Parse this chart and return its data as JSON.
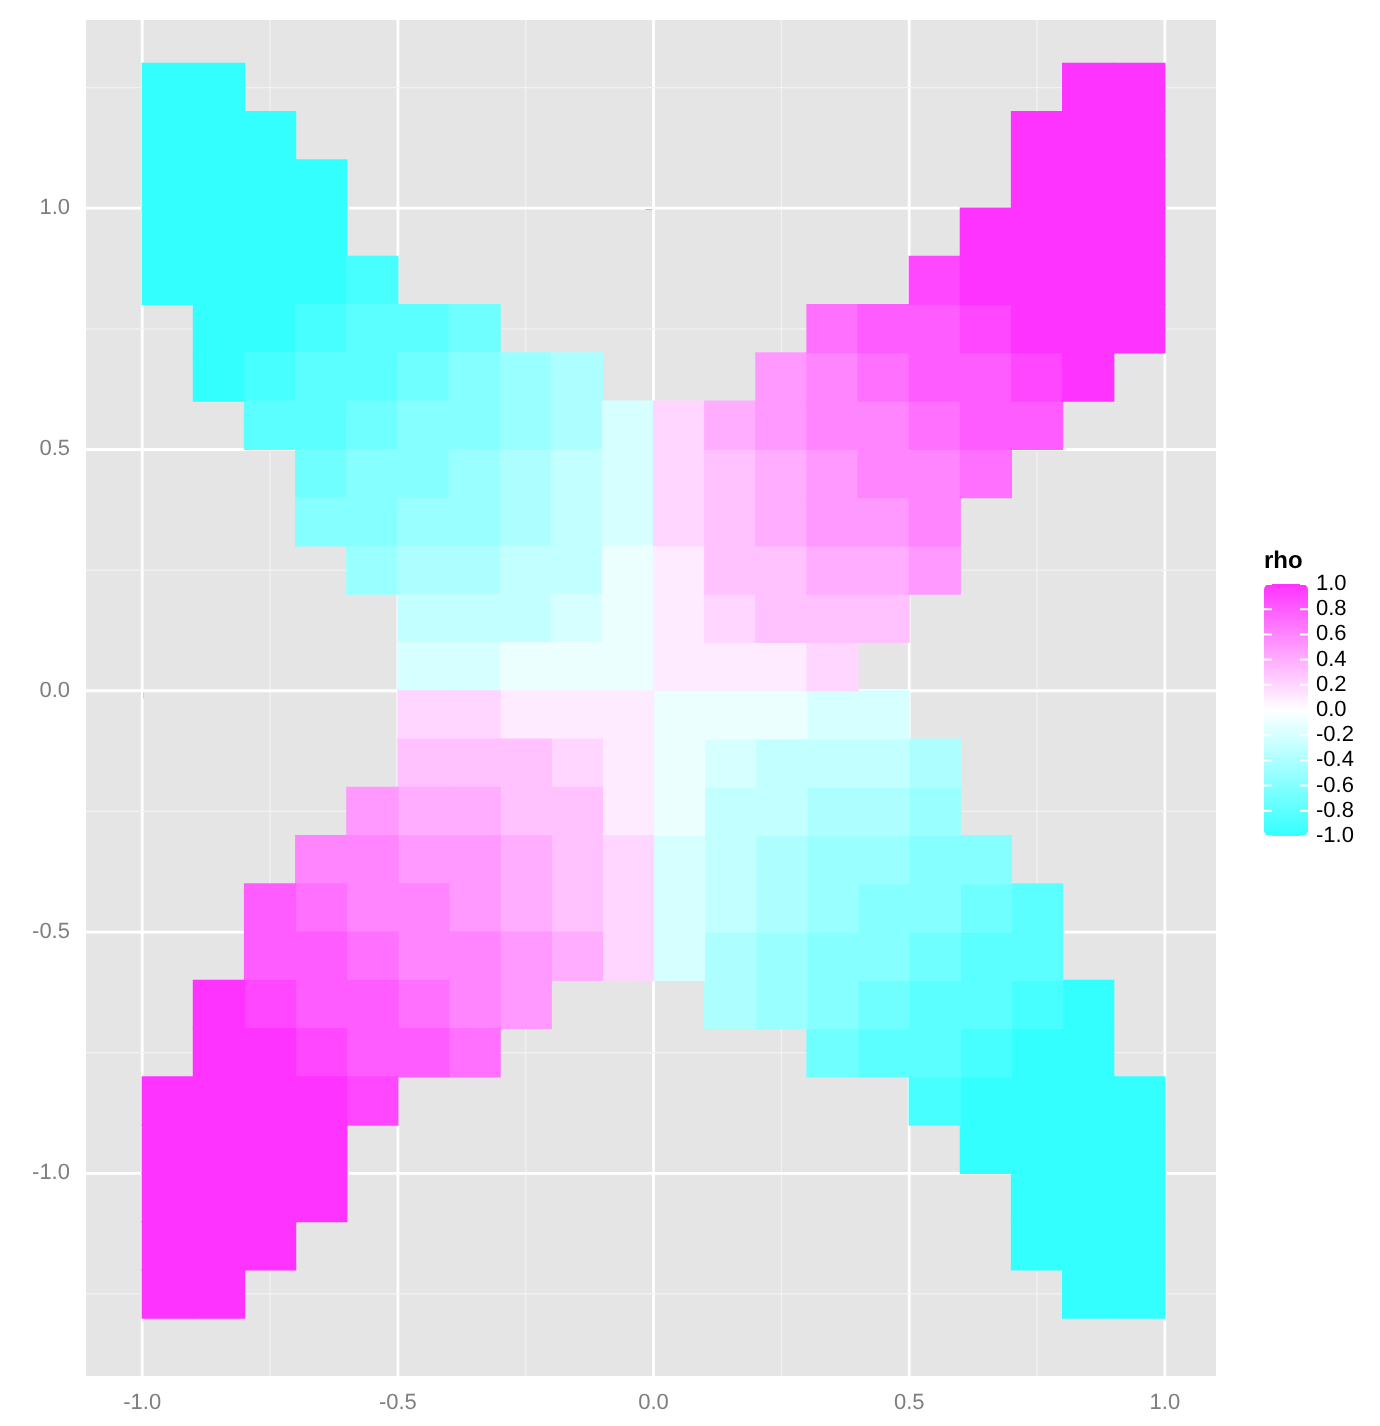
{
  "chart_data": {
    "type": "scatter",
    "marker": "square",
    "grid": true,
    "clabel": "rho",
    "clim": [
      -1,
      1
    ],
    "cticks": [
      {
        "value": 1,
        "label": "1.0"
      },
      0.8,
      0.6,
      0.4,
      0.2,
      {
        "value": 0,
        "label": "0.0"
      },
      -0.2,
      -0.4,
      -0.6,
      -0.8,
      {
        "value": -1,
        "label": "-1.0"
      }
    ],
    "xlim": [
      -1.11,
      1.1
    ],
    "ylim": [
      -1.42,
      1.39
    ],
    "xticks": [
      {
        "value": -1,
        "label": "-1.0"
      },
      -0.5,
      {
        "value": 0,
        "label": "0.0"
      },
      0.5,
      {
        "value": 1,
        "label": "1.0"
      }
    ],
    "yticks": [
      {
        "value": -1,
        "label": "-1.0"
      },
      -0.5,
      {
        "value": 0,
        "label": "0.0"
      },
      0.5,
      {
        "value": 1,
        "label": "1.0"
      }
    ],
    "series": [
      {
        "x": [
          -0.95,
          -0.85,
          -0.95,
          -0.85,
          -0.75,
          -0.95,
          -0.85,
          -0.75,
          -0.65,
          -0.95,
          -0.85,
          -0.75,
          -0.65,
          -0.95,
          -0.85,
          -0.75,
          -0.65,
          -0.85,
          -0.75,
          -0.85,
          0.85,
          0.75,
          0.85,
          0.65,
          0.75,
          0.85,
          0.95,
          0.65,
          0.75,
          0.85,
          0.95,
          0.75,
          0.85,
          0.95,
          0.75,
          0.85,
          0.95,
          0.85,
          0.95
        ],
        "values": [
          1.25,
          1.25,
          1.15,
          1.15,
          1.15,
          1.05,
          1.05,
          1.05,
          1.05,
          0.95,
          0.95,
          0.95,
          0.95,
          0.85,
          0.85,
          0.85,
          0.85,
          0.75,
          0.75,
          0.65,
          -0.65,
          -0.75,
          -0.75,
          -0.85,
          -0.85,
          -0.85,
          -0.85,
          -0.95,
          -0.95,
          -0.95,
          -0.95,
          -1.05,
          -1.05,
          -1.05,
          -1.15,
          -1.15,
          -1.15,
          -1.25,
          -1.25
        ],
        "cvalues": [
          -1,
          -1,
          -1,
          -1,
          -1,
          -1,
          -1,
          -1,
          -1,
          -1,
          -1,
          -1,
          -1,
          -1,
          -1,
          -1,
          -1,
          -1,
          -1,
          -1,
          -1,
          -1,
          -1,
          -1,
          -1,
          -1,
          -1,
          -1,
          -1,
          -1,
          -1,
          -1,
          -1,
          -1,
          -1,
          -1,
          -1,
          -1,
          -1
        ]
      },
      {
        "x": [
          -0.55,
          -0.65,
          -0.75,
          0.75,
          0.65,
          0.55
        ],
        "values": [
          0.85,
          0.75,
          0.65,
          -0.65,
          -0.75,
          -0.85
        ],
        "cvalues": [
          -0.9,
          -0.9,
          -0.9,
          -0.9,
          -0.9,
          -0.9
        ]
      },
      {
        "x": [
          -0.55,
          -0.45,
          -0.65,
          -0.55,
          -0.75,
          -0.65,
          0.75,
          0.65,
          0.75,
          0.55,
          0.65,
          0.45,
          0.55
        ],
        "values": [
          0.75,
          0.75,
          0.65,
          0.65,
          0.55,
          0.55,
          -0.45,
          -0.55,
          -0.55,
          -0.65,
          -0.65,
          -0.75,
          -0.75
        ],
        "cvalues": [
          -0.8,
          -0.8,
          -0.8,
          -0.8,
          -0.8,
          -0.8,
          -0.8,
          -0.8,
          -0.8,
          -0.8,
          -0.8,
          -0.8,
          -0.8
        ]
      },
      {
        "x": [
          -0.35,
          -0.45,
          -0.55,
          -0.65,
          0.65,
          0.55,
          0.45,
          0.35
        ],
        "values": [
          0.75,
          0.65,
          0.55,
          0.45,
          -0.45,
          -0.55,
          -0.65,
          -0.75
        ],
        "cvalues": [
          -0.7,
          -0.7,
          -0.7,
          -0.7,
          -0.7,
          -0.7,
          -0.7,
          -0.7
        ]
      },
      {
        "x": [
          -0.35,
          -0.45,
          -0.35,
          -0.55,
          -0.45,
          -0.65,
          -0.55,
          0.55,
          0.65,
          0.45,
          0.55,
          0.35,
          0.45,
          0.35
        ],
        "values": [
          0.65,
          0.55,
          0.55,
          0.45,
          0.45,
          0.35,
          0.35,
          -0.35,
          -0.35,
          -0.45,
          -0.45,
          -0.55,
          -0.55,
          -0.65
        ],
        "cvalues": [
          -0.6,
          -0.6,
          -0.6,
          -0.6,
          -0.6,
          -0.6,
          -0.6,
          -0.6,
          -0.6,
          -0.6,
          -0.6,
          -0.6,
          -0.6,
          -0.6
        ]
      },
      {
        "x": [
          -0.25,
          -0.25,
          -0.35,
          -0.45,
          -0.35,
          -0.55,
          0.55,
          0.35,
          0.45,
          0.35,
          0.25,
          0.25
        ],
        "values": [
          0.65,
          0.55,
          0.45,
          0.35,
          0.35,
          0.25,
          -0.25,
          -0.35,
          -0.35,
          -0.45,
          -0.55,
          -0.65
        ],
        "cvalues": [
          -0.5,
          -0.5,
          -0.5,
          -0.5,
          -0.5,
          -0.5,
          -0.5,
          -0.5,
          -0.5,
          -0.5,
          -0.5,
          -0.5
        ]
      },
      {
        "x": [
          -0.15,
          -0.15,
          -0.25,
          -0.25,
          -0.45,
          -0.35,
          0.55,
          0.35,
          0.45,
          0.25,
          0.25,
          0.15,
          0.15
        ],
        "values": [
          0.65,
          0.55,
          0.45,
          0.35,
          0.25,
          0.25,
          -0.15,
          -0.25,
          -0.25,
          -0.35,
          -0.45,
          -0.55,
          -0.65
        ],
        "cvalues": [
          -0.4,
          -0.4,
          -0.4,
          -0.4,
          -0.4,
          -0.4,
          -0.4,
          -0.4,
          -0.4,
          -0.4,
          -0.4,
          -0.4,
          -0.4
        ]
      },
      {
        "x": [
          -0.15,
          -0.15,
          -0.25,
          -0.15,
          -0.45,
          -0.35,
          -0.25,
          0.25,
          0.35,
          0.45,
          0.15,
          0.25,
          0.15,
          0.15
        ],
        "values": [
          0.45,
          0.35,
          0.25,
          0.25,
          0.15,
          0.15,
          0.15,
          -0.15,
          -0.15,
          -0.15,
          -0.25,
          -0.25,
          -0.35,
          -0.45
        ],
        "cvalues": [
          -0.3,
          -0.3,
          -0.3,
          -0.3,
          -0.3,
          -0.3,
          -0.3,
          -0.3,
          -0.3,
          -0.3,
          -0.3,
          -0.3,
          -0.3,
          -0.3
        ]
      },
      {
        "x": [
          -0.05,
          -0.05,
          -0.05,
          -0.15,
          -0.45,
          -0.35,
          0.35,
          0.45,
          0.15,
          0.05,
          0.05,
          0.05
        ],
        "values": [
          0.55,
          0.45,
          0.35,
          0.15,
          0.05,
          0.05,
          -0.05,
          -0.05,
          -0.15,
          -0.35,
          -0.45,
          -0.55
        ],
        "cvalues": [
          -0.2,
          -0.2,
          -0.2,
          -0.2,
          -0.2,
          -0.2,
          -0.2,
          -0.2,
          -0.2,
          -0.2,
          -0.2,
          -0.2
        ]
      },
      {
        "x": [
          -0.05,
          -0.05,
          -0.25,
          -0.15,
          -0.05,
          0.05,
          0.15,
          0.25,
          0.05,
          0.05
        ],
        "values": [
          0.25,
          0.15,
          0.05,
          0.05,
          0.05,
          -0.05,
          -0.05,
          -0.05,
          -0.15,
          -0.25
        ],
        "cvalues": [
          -0.1,
          -0.1,
          -0.1,
          -0.1,
          -0.1,
          -0.1,
          -0.1,
          -0.1,
          -0.1,
          -0.1
        ]
      },
      {
        "x": [
          0.05,
          0.05,
          0.05,
          0.15,
          0.25,
          -0.25,
          -0.15,
          -0.05,
          -0.05,
          -0.05
        ],
        "values": [
          0.25,
          0.15,
          0.05,
          0.05,
          0.05,
          -0.05,
          -0.05,
          -0.05,
          -0.15,
          -0.25
        ],
        "cvalues": [
          0.1,
          0.1,
          0.1,
          0.1,
          0.1,
          0.1,
          0.1,
          0.1,
          0.1,
          0.1
        ]
      },
      {
        "x": [
          0.05,
          0.05,
          0.05,
          0.15,
          0.35,
          -0.45,
          -0.35,
          -0.15,
          -0.05,
          -0.05,
          -0.05
        ],
        "values": [
          0.55,
          0.45,
          0.35,
          0.15,
          0.05,
          -0.05,
          -0.05,
          -0.15,
          -0.35,
          -0.45,
          -0.55
        ],
        "cvalues": [
          0.2,
          0.2,
          0.2,
          0.2,
          0.2,
          0.2,
          0.2,
          0.2,
          0.2,
          0.2,
          0.2
        ]
      },
      {
        "x": [
          0.15,
          0.15,
          0.15,
          0.25,
          0.25,
          0.35,
          0.45,
          -0.45,
          -0.35,
          -0.25,
          -0.25,
          -0.15,
          -0.15,
          -0.15
        ],
        "values": [
          0.45,
          0.35,
          0.25,
          0.25,
          0.15,
          0.15,
          0.15,
          -0.15,
          -0.15,
          -0.15,
          -0.25,
          -0.25,
          -0.35,
          -0.45
        ],
        "cvalues": [
          0.3,
          0.3,
          0.3,
          0.3,
          0.3,
          0.3,
          0.3,
          0.3,
          0.3,
          0.3,
          0.3,
          0.3,
          0.3,
          0.3
        ]
      },
      {
        "x": [
          0.15,
          0.25,
          0.25,
          0.35,
          0.45,
          -0.45,
          -0.35,
          -0.25,
          -0.25,
          -0.15
        ],
        "values": [
          0.55,
          0.45,
          0.35,
          0.25,
          0.25,
          -0.25,
          -0.25,
          -0.35,
          -0.45,
          -0.55
        ],
        "cvalues": [
          0.4,
          0.4,
          0.4,
          0.4,
          0.4,
          0.4,
          0.4,
          0.4,
          0.4,
          0.4
        ]
      },
      {
        "x": [
          0.25,
          0.25,
          0.35,
          0.35,
          0.45,
          0.55,
          -0.55,
          -0.45,
          -0.35,
          -0.35,
          -0.25,
          -0.25
        ],
        "values": [
          0.65,
          0.55,
          0.45,
          0.35,
          0.35,
          0.25,
          -0.25,
          -0.35,
          -0.35,
          -0.45,
          -0.55,
          -0.65
        ],
        "cvalues": [
          0.5,
          0.5,
          0.5,
          0.5,
          0.5,
          0.5,
          0.5,
          0.5,
          0.5,
          0.5,
          0.5,
          0.5
        ]
      },
      {
        "x": [
          0.35,
          0.35,
          0.45,
          0.45,
          0.55,
          0.55,
          -0.65,
          -0.55,
          -0.55,
          -0.45,
          -0.45,
          -0.35,
          -0.35
        ],
        "values": [
          0.65,
          0.55,
          0.55,
          0.45,
          0.45,
          0.35,
          -0.35,
          -0.35,
          -0.45,
          -0.45,
          -0.55,
          -0.55,
          -0.65
        ],
        "cvalues": [
          0.6,
          0.6,
          0.6,
          0.6,
          0.6,
          0.6,
          0.6,
          0.6,
          0.6,
          0.6,
          0.6,
          0.6,
          0.6
        ]
      },
      {
        "x": [
          0.35,
          0.45,
          0.55,
          0.65,
          -0.65,
          -0.55,
          -0.45,
          -0.35
        ],
        "values": [
          0.75,
          0.65,
          0.55,
          0.45,
          -0.45,
          -0.55,
          -0.65,
          -0.75
        ],
        "cvalues": [
          0.7,
          0.7,
          0.7,
          0.7,
          0.7,
          0.7,
          0.7,
          0.7
        ]
      },
      {
        "x": [
          0.45,
          0.55,
          0.55,
          0.65,
          0.65,
          0.75,
          -0.75,
          -0.75,
          -0.65,
          -0.65,
          -0.55,
          -0.55,
          -0.45
        ],
        "values": [
          0.75,
          0.75,
          0.65,
          0.65,
          0.55,
          0.55,
          -0.45,
          -0.55,
          -0.55,
          -0.65,
          -0.65,
          -0.75,
          -0.75
        ],
        "cvalues": [
          0.8,
          0.8,
          0.8,
          0.8,
          0.8,
          0.8,
          0.8,
          0.8,
          0.8,
          0.8,
          0.8,
          0.8,
          0.8
        ]
      },
      {
        "x": [
          0.55,
          0.65,
          0.75,
          -0.75,
          -0.65,
          -0.55
        ],
        "values": [
          0.85,
          0.75,
          0.65,
          -0.65,
          -0.75,
          -0.85
        ],
        "cvalues": [
          0.9,
          0.9,
          0.9,
          0.9,
          0.9,
          0.9
        ]
      },
      {
        "x": [
          0.85,
          0.95,
          0.75,
          0.85,
          0.95,
          0.75,
          0.85,
          0.95,
          0.65,
          0.75,
          0.85,
          0.95,
          0.65,
          0.75,
          0.85,
          0.95,
          0.75,
          0.85,
          0.95,
          0.85,
          -0.85,
          -0.85,
          -0.75,
          -0.95,
          -0.85,
          -0.75,
          -0.65,
          -0.95,
          -0.85,
          -0.75,
          -0.65,
          -0.95,
          -0.85,
          -0.75,
          -0.65,
          -0.95,
          -0.85,
          -0.75,
          -0.95,
          -0.85
        ],
        "values": [
          1.25,
          1.25,
          1.15,
          1.15,
          1.15,
          1.05,
          1.05,
          1.05,
          0.95,
          0.95,
          0.95,
          0.95,
          0.85,
          0.85,
          0.85,
          0.85,
          0.75,
          0.75,
          0.75,
          0.65,
          -0.65,
          -0.75,
          -0.75,
          -0.85,
          -0.85,
          -0.85,
          -0.85,
          -0.95,
          -0.95,
          -0.95,
          -0.95,
          -1.05,
          -1.05,
          -1.05,
          -1.05,
          -1.15,
          -1.15,
          -1.15,
          -1.25,
          -1.25
        ],
        "cvalues": [
          1,
          1,
          1,
          1,
          1,
          1,
          1,
          1,
          1,
          1,
          1,
          1,
          1,
          1,
          1,
          1,
          1,
          1,
          1,
          1,
          1,
          1,
          1,
          1,
          1,
          1,
          1,
          1,
          1,
          1,
          1,
          1,
          1,
          1,
          1,
          1,
          1,
          1,
          1,
          1
        ]
      }
    ]
  }
}
